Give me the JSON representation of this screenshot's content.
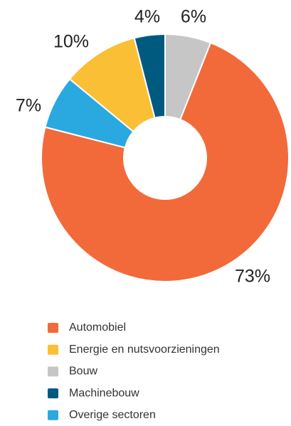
{
  "chart_data": {
    "type": "donut",
    "series": [
      {
        "name": "Automobiel",
        "color": "#f26a3a",
        "values": [
          73
        ],
        "value_labels": [
          "73%"
        ]
      },
      {
        "name": "Energie en nutsvoorzieningen",
        "color": "#fbbf35",
        "values": [
          10
        ],
        "value_labels": [
          "10%"
        ]
      },
      {
        "name": "Bouw",
        "color": "#c6c6c6",
        "values": [
          6
        ],
        "value_labels": [
          "6%"
        ]
      },
      {
        "name": "Machinebouw",
        "color": "#005a80",
        "values": [
          4
        ],
        "value_labels": [
          "4%"
        ]
      },
      {
        "name": "Overige sectoren",
        "color": "#2aa9e0",
        "values": [
          7
        ],
        "value_labels": [
          "7%"
        ]
      }
    ]
  }
}
